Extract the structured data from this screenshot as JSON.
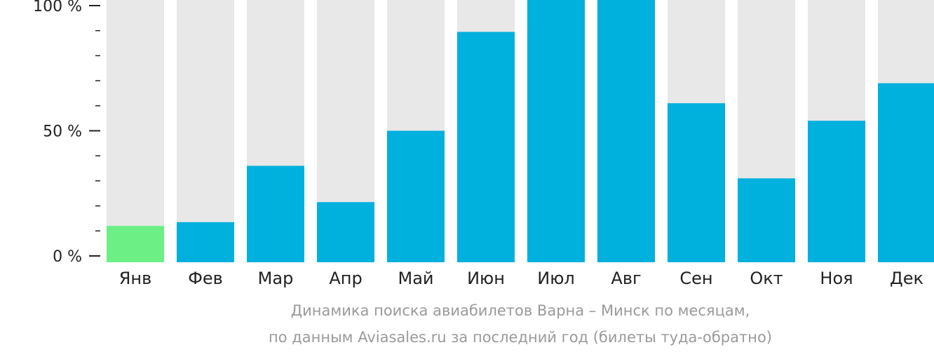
{
  "chart_data": {
    "type": "bar",
    "categories": [
      "Янв",
      "Фев",
      "Мар",
      "Апр",
      "Май",
      "Июн",
      "Июл",
      "Авг",
      "Сен",
      "Окт",
      "Ноя",
      "Дек"
    ],
    "values": [
      12,
      13.5,
      36,
      21.5,
      50,
      89.5,
      103,
      106,
      61,
      31,
      54,
      69
    ],
    "highlight_index": 0,
    "ylim": [
      0,
      100
    ],
    "y_ticks": [
      {
        "value": 0,
        "label": "0 %"
      },
      {
        "value": 50,
        "label": "50 %"
      },
      {
        "value": 100,
        "label": "100 %"
      }
    ],
    "y_minor_step": 10,
    "grid": false,
    "colors": {
      "bar": "#00b0dd",
      "highlight": "#6cf085",
      "track": "#e8e8e8",
      "axis": "#222222"
    }
  },
  "caption": {
    "line1": "Динамика поиска авиабилетов Варна – Минск по месяцам,",
    "line2": "по данным Aviasales.ru за последний год (билеты туда-обратно)"
  }
}
